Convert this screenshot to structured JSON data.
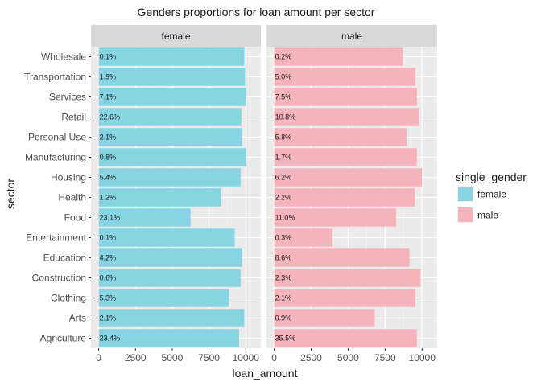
{
  "chart_data": {
    "type": "bar",
    "orientation": "horizontal",
    "faceted": true,
    "title": "Genders proportions for loan amount per sector",
    "xlabel": "loan_amount",
    "ylabel": "sector",
    "xlim": [
      0,
      10500
    ],
    "x_ticks": [
      0,
      2500,
      5000,
      7500,
      10000
    ],
    "x_tick_labels": [
      "0",
      "2500",
      "5000",
      "7500",
      "10000"
    ],
    "grid": true,
    "legend": {
      "title": "single_gender",
      "position": "right",
      "entries": [
        {
          "label": "female",
          "color": "#87d4e3"
        },
        {
          "label": "male",
          "color": "#f5b4bb"
        }
      ]
    },
    "categories": [
      "Wholesale",
      "Transportation",
      "Services",
      "Retail",
      "Personal Use",
      "Manufacturing",
      "Housing",
      "Health",
      "Food",
      "Entertainment",
      "Education",
      "Construction",
      "Clothing",
      "Arts",
      "Agriculture"
    ],
    "panels": [
      {
        "name": "female",
        "color": "#87d4e3",
        "values": [
          9900,
          9950,
          10000,
          9700,
          9750,
          10000,
          9650,
          8300,
          6250,
          9250,
          9750,
          9650,
          8850,
          9900,
          9550
        ],
        "labels": [
          "0.1%",
          "1.9%",
          "7.1%",
          "22.6%",
          "2.1%",
          "0.8%",
          "5.4%",
          "1.2%",
          "23.1%",
          "0.1%",
          "4.2%",
          "0.6%",
          "5.3%",
          "2.1%",
          "23.4%"
        ]
      },
      {
        "name": "male",
        "color": "#f5b4bb",
        "values": [
          8700,
          9550,
          9650,
          9800,
          8950,
          9650,
          10000,
          9500,
          8250,
          3950,
          9150,
          9900,
          9550,
          6800,
          9650
        ],
        "labels": [
          "0.2%",
          "5.0%",
          "7.5%",
          "10.8%",
          "5.8%",
          "1.7%",
          "6.2%",
          "2.2%",
          "11.0%",
          "0.3%",
          "8.6%",
          "2.3%",
          "2.1%",
          "0.9%",
          "35.5%"
        ]
      }
    ]
  }
}
